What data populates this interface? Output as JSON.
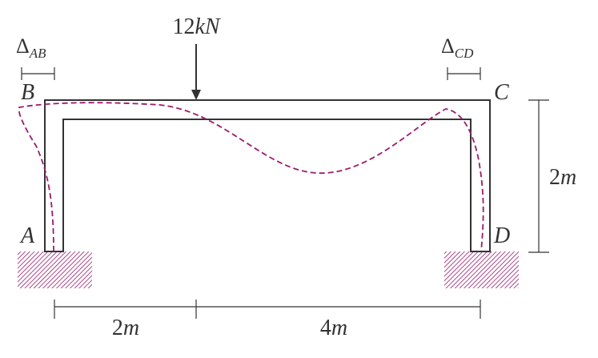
{
  "load": {
    "label": "12kN",
    "number": "12",
    "unit": "kN"
  },
  "deflections": {
    "ab": {
      "symbol": "Δ",
      "subscript": "AB"
    },
    "cd": {
      "symbol": "Δ",
      "subscript": "CD"
    }
  },
  "nodes": {
    "a": "A",
    "b": "B",
    "c": "C",
    "d": "D"
  },
  "dimensions": {
    "height": {
      "number": "2",
      "unit": "m"
    },
    "span_left": {
      "number": "2",
      "unit": "m"
    },
    "span_right": {
      "number": "4",
      "unit": "m"
    }
  },
  "colors": {
    "frame": "#333333",
    "deflected_shape": "#9b1b6e",
    "support_hatch": "#9b1b6e"
  }
}
